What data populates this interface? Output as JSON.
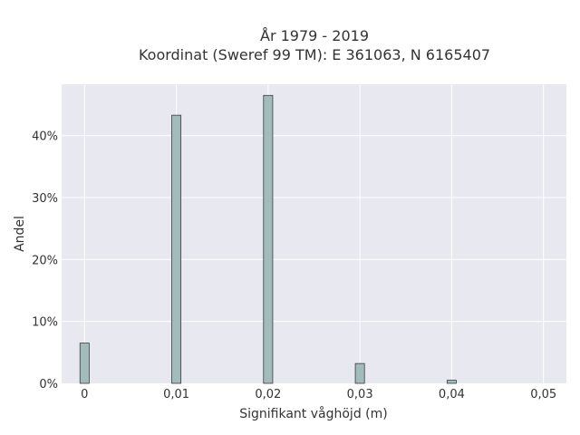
{
  "chart_data": {
    "type": "bar",
    "title_line1": "År 1979 - 2019",
    "title_line2": "Koordinat (Sweref 99 TM): E 361063, N 6165407",
    "xlabel": "Signifikant våghöjd (m)",
    "ylabel": "Andel",
    "x_ticks": [
      "0",
      "0,01",
      "0,02",
      "0,03",
      "0,04",
      "0,05"
    ],
    "x_tick_values": [
      0,
      0.01,
      0.02,
      0.03,
      0.04,
      0.05
    ],
    "y_ticks": [
      "0%",
      "10%",
      "20%",
      "30%",
      "40%"
    ],
    "y_tick_values": [
      0,
      10,
      20,
      30,
      40
    ],
    "xlim": [
      -0.0025,
      0.0525
    ],
    "ylim": [
      0,
      48.3
    ],
    "bar_width": 0.001,
    "bars": [
      {
        "x": 0.0,
        "value": 6.5
      },
      {
        "x": 0.01,
        "value": 43.3
      },
      {
        "x": 0.02,
        "value": 46.5
      },
      {
        "x": 0.03,
        "value": 3.2
      },
      {
        "x": 0.04,
        "value": 0.5
      }
    ],
    "bar_color": "#a2bcbc",
    "bar_edge_color": "#3a3a3a",
    "plot_bg": "#e8e8f0",
    "grid": true,
    "grid_color": "#ffffff"
  }
}
